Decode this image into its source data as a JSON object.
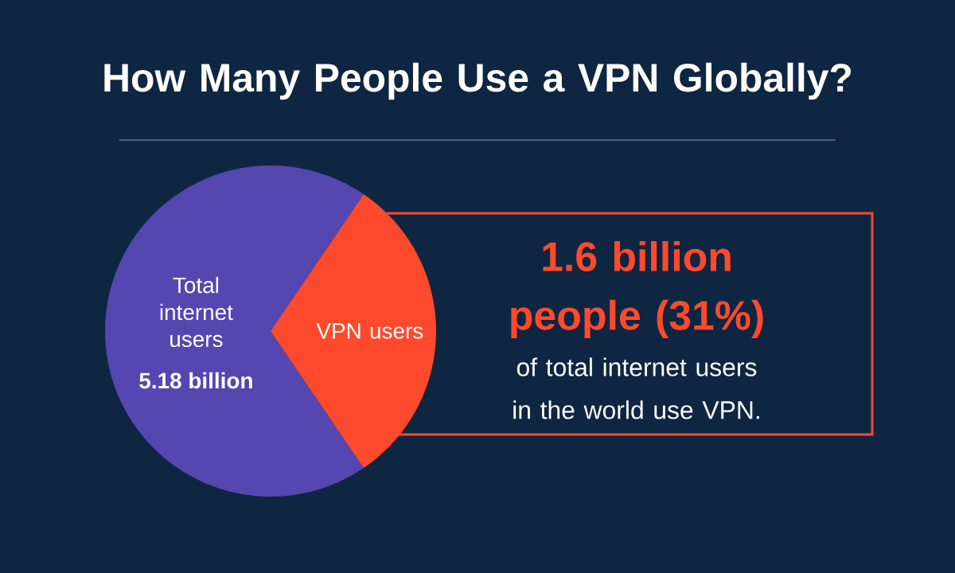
{
  "chart_data": {
    "type": "pie",
    "title": "How Many People Use a VPN Globally?",
    "categories": [
      "Total internet users",
      "VPN users"
    ],
    "values": [
      69,
      31
    ],
    "colors": [
      "#5546b0",
      "#fd4a2c"
    ],
    "annotations": [
      "5.18 billion",
      "1.6 billion people (31%)",
      "of total internet users in the world use VPN."
    ]
  }
}
